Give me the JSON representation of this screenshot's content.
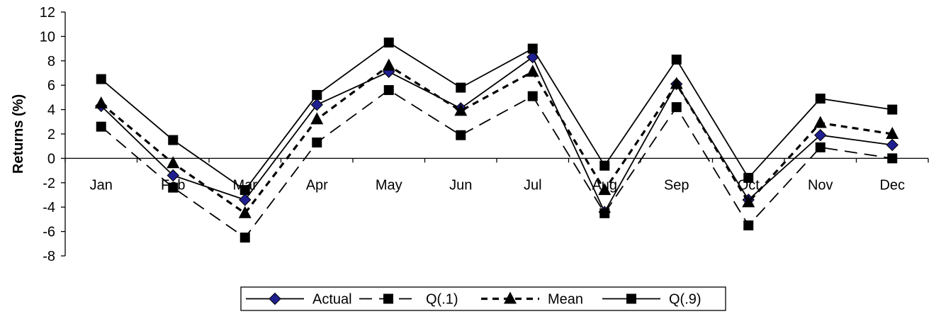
{
  "chart_data": {
    "type": "line",
    "title": "",
    "xlabel": "",
    "ylabel": "Returns (%)",
    "categories": [
      "Jan",
      "Feb",
      "Mar",
      "Apr",
      "May",
      "Jun",
      "Jul",
      "Aug",
      "Sep",
      "Oct",
      "Nov",
      "Dec"
    ],
    "ylim": [
      -8,
      12
    ],
    "yticks": [
      12,
      10,
      8,
      6,
      4,
      2,
      0,
      -2,
      -4,
      -6,
      -8
    ],
    "grid": false,
    "legend_position": "bottom",
    "series": [
      {
        "name": "Actual",
        "marker": "diamond",
        "dash": "solid",
        "line_color": "#000000",
        "marker_color": "#1f1f8f",
        "values": [
          4.3,
          -1.4,
          -3.4,
          4.4,
          7.1,
          4.1,
          8.3,
          -4.4,
          6.1,
          -3.4,
          1.9,
          1.1
        ]
      },
      {
        "name": "Q(.1)",
        "marker": "square",
        "dash": "long-dash",
        "line_color": "#000000",
        "marker_color": "#000000",
        "values": [
          2.6,
          -2.4,
          -6.5,
          1.3,
          5.6,
          1.9,
          5.1,
          -4.5,
          4.2,
          -5.5,
          0.9,
          0.0
        ]
      },
      {
        "name": "Mean",
        "marker": "triangle",
        "dash": "short-dash",
        "line_color": "#000000",
        "marker_color": "#000000",
        "values": [
          4.5,
          -0.4,
          -4.5,
          3.2,
          7.6,
          3.9,
          7.1,
          -2.6,
          6.1,
          -3.6,
          2.9,
          2.0
        ]
      },
      {
        "name": "Q(.9)",
        "marker": "square",
        "dash": "solid",
        "line_color": "#000000",
        "marker_color": "#000000",
        "values": [
          6.5,
          1.5,
          -2.6,
          5.2,
          9.5,
          5.8,
          9.0,
          -0.6,
          8.1,
          -1.6,
          4.9,
          4.0
        ]
      }
    ]
  }
}
